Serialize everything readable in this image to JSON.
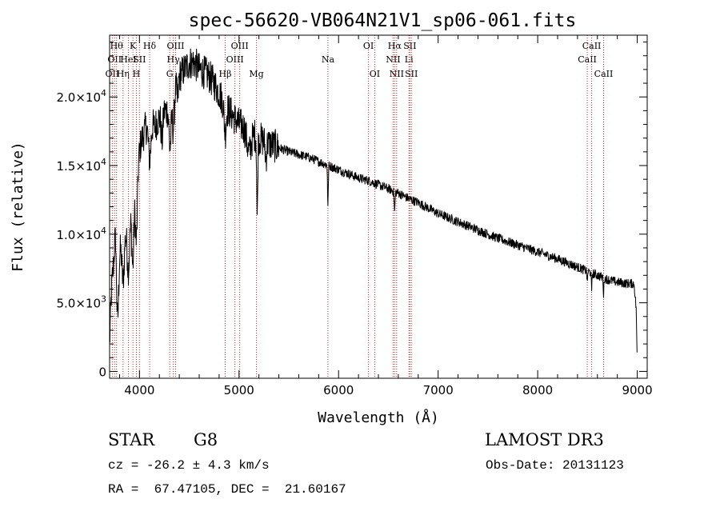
{
  "chart_data": {
    "type": "line",
    "title": "spec-56620-VB064N21V1_sp06-061.fits",
    "xlabel": "Wavelength (Å)",
    "ylabel": "Flux (relative)",
    "xlim": [
      3700,
      9100
    ],
    "ylim": [
      -500,
      24500
    ],
    "x_ticks": [
      4000,
      5000,
      6000,
      7000,
      8000,
      9000
    ],
    "x_tick_labels": [
      "4000",
      "5000",
      "6000",
      "7000",
      "8000",
      "9000"
    ],
    "y_ticks": [
      0,
      5000,
      10000,
      15000,
      20000
    ],
    "y_tick_labels": [
      {
        "mant": "0",
        "exp": ""
      },
      {
        "mant": "5.0×10",
        "exp": "3"
      },
      {
        "mant": "1.0×10",
        "exp": "4"
      },
      {
        "mant": "1.5×10",
        "exp": "4"
      },
      {
        "mant": "2.0×10",
        "exp": "4"
      }
    ],
    "continuum": {
      "x": [
        3700,
        3720,
        3740,
        3760,
        3780,
        3800,
        3830,
        3860,
        3890,
        3920,
        3950,
        3980,
        4010,
        4050,
        4100,
        4150,
        4200,
        4250,
        4300,
        4350,
        4400,
        4450,
        4500,
        4550,
        4600,
        4650,
        4700,
        4750,
        4800,
        4850,
        4900,
        4950,
        5000,
        5050,
        5100,
        5150,
        5200,
        5300,
        5400,
        5500,
        5600,
        5700,
        5800,
        5900,
        6000,
        6100,
        6200,
        6300,
        6400,
        6500,
        6600,
        6700,
        6800,
        6900,
        7000,
        7200,
        7400,
        7600,
        7800,
        8000,
        8200,
        8400,
        8500,
        8600,
        8700,
        8800,
        8900,
        8960,
        8970,
        8990,
        9000
      ],
      "y": [
        2000,
        6000,
        8000,
        11000,
        7000,
        9500,
        10000,
        10500,
        11000,
        12000,
        13500,
        15000,
        16500,
        17500,
        18500,
        17800,
        18500,
        19000,
        19000,
        20500,
        21500,
        22000,
        22500,
        22500,
        22000,
        21800,
        21500,
        21000,
        20300,
        19500,
        19000,
        18500,
        18000,
        17800,
        17500,
        17300,
        17000,
        16600,
        16300,
        16000,
        15800,
        15600,
        15300,
        15000,
        14700,
        14400,
        14100,
        13900,
        13600,
        13300,
        13000,
        12600,
        12300,
        11900,
        11500,
        10900,
        10300,
        9700,
        9200,
        8700,
        8200,
        7600,
        7300,
        7000,
        6700,
        6500,
        6400,
        6400,
        6300,
        4500,
        300
      ]
    },
    "absorption_dips": [
      {
        "center": 3780,
        "depth": 3500,
        "width": 20
      },
      {
        "center": 3835,
        "depth": 3500,
        "width": 18
      },
      {
        "center": 3889,
        "depth": 3500,
        "width": 18
      },
      {
        "center": 3934,
        "depth": 5000,
        "width": 14
      },
      {
        "center": 3969,
        "depth": 5000,
        "width": 14
      },
      {
        "center": 4102,
        "depth": 3000,
        "width": 18
      },
      {
        "center": 4226,
        "depth": 2000,
        "width": 12
      },
      {
        "center": 4308,
        "depth": 3000,
        "width": 14
      },
      {
        "center": 4340,
        "depth": 2500,
        "width": 14
      },
      {
        "center": 4383,
        "depth": 1500,
        "width": 10
      },
      {
        "center": 4861,
        "depth": 2000,
        "width": 14
      },
      {
        "center": 5100,
        "depth": 1500,
        "width": 30
      },
      {
        "center": 5183,
        "depth": 6000,
        "width": 7
      },
      {
        "center": 5270,
        "depth": 1200,
        "width": 10
      },
      {
        "center": 5893,
        "depth": 3000,
        "width": 5
      },
      {
        "center": 6563,
        "depth": 1500,
        "width": 6
      },
      {
        "center": 8498,
        "depth": 1000,
        "width": 4
      },
      {
        "center": 8542,
        "depth": 1500,
        "width": 4
      },
      {
        "center": 8662,
        "depth": 1300,
        "width": 4
      }
    ],
    "noise_amplitude": 700,
    "line_markers": [
      {
        "x": 3727,
        "label": "OII",
        "row": 3
      },
      {
        "x": 3750,
        "label": "OII",
        "row": 2
      },
      {
        "x": 3770,
        "label": "Hθ",
        "row": 1
      },
      {
        "x": 3835,
        "label": "Hη",
        "row": 3
      },
      {
        "x": 3889,
        "label": "HeI",
        "row": 2
      },
      {
        "x": 3934,
        "label": "K",
        "row": 1
      },
      {
        "x": 3969,
        "label": "H",
        "row": 3
      },
      {
        "x": 4000,
        "label": "SII",
        "row": 2
      },
      {
        "x": 4102,
        "label": "Hδ",
        "row": 1
      },
      {
        "x": 4304,
        "label": "G",
        "row": 3
      },
      {
        "x": 4340,
        "label": "Hγ",
        "row": 2
      },
      {
        "x": 4363,
        "label": "OIII",
        "row": 1
      },
      {
        "x": 4861,
        "label": "Hβ",
        "row": 3
      },
      {
        "x": 4959,
        "label": "OIII",
        "row": 2
      },
      {
        "x": 5007,
        "label": "OIII",
        "row": 1
      },
      {
        "x": 5175,
        "label": "Mg",
        "row": 3
      },
      {
        "x": 5893,
        "label": "Na",
        "row": 2
      },
      {
        "x": 6300,
        "label": "OI",
        "row": 1
      },
      {
        "x": 6363,
        "label": "OI",
        "row": 3
      },
      {
        "x": 6548,
        "label": "NII",
        "row": 2
      },
      {
        "x": 6563,
        "label": "Hα",
        "row": 1
      },
      {
        "x": 6583,
        "label": "NII",
        "row": 3
      },
      {
        "x": 6707,
        "label": "Li",
        "row": 2
      },
      {
        "x": 6716,
        "label": "SII",
        "row": 1
      },
      {
        "x": 6731,
        "label": "SII",
        "row": 3
      },
      {
        "x": 8498,
        "label": "CaII",
        "row": 2
      },
      {
        "x": 8542,
        "label": "CaII",
        "row": 1
      },
      {
        "x": 8662,
        "label": "CaII",
        "row": 3
      }
    ]
  },
  "info": {
    "object_class": "STAR",
    "subclass": "G8",
    "survey": "LAMOST DR3",
    "redshift": "cz = -26.2 ± 4.3 km/s",
    "obs_date": "Obs-Date: 20131123",
    "coords": "RA =  67.47105, DEC =  21.60167"
  },
  "colors": {
    "spectrum": "#000000",
    "marker_line": "#cc2222",
    "axes": "#000000",
    "background": "#ffffff"
  }
}
